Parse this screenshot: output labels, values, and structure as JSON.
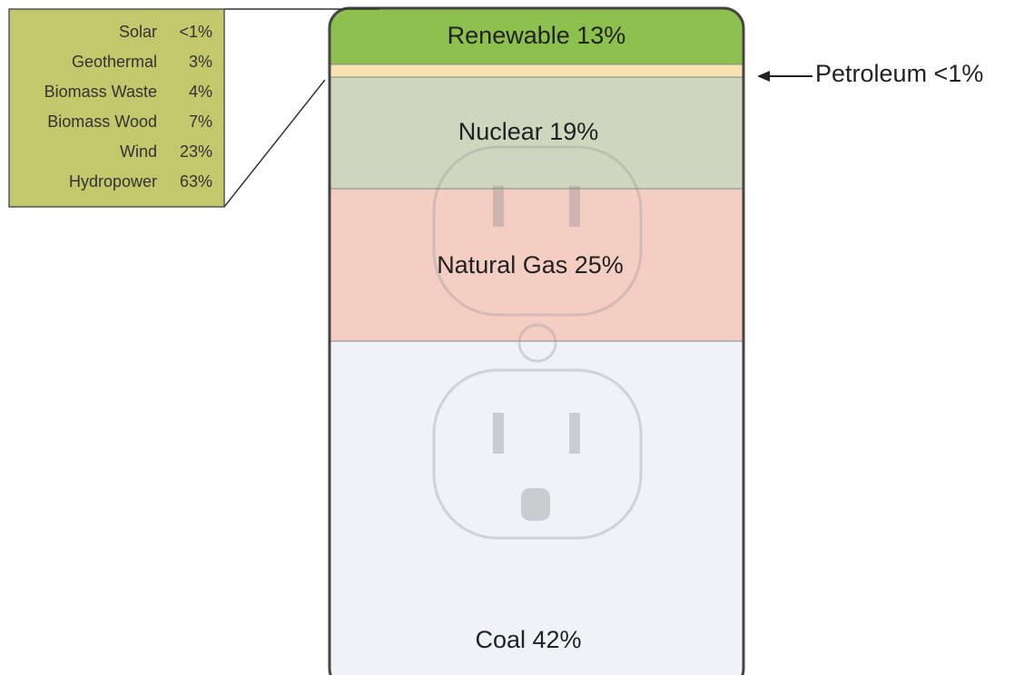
{
  "segments": [
    {
      "label": "Renewable 13%"
    },
    {
      "label": "Nuclear 19%"
    },
    {
      "label": "Natural Gas 25%"
    },
    {
      "label": "Coal 42%"
    }
  ],
  "petroleum": {
    "label": "Petroleum <1%"
  },
  "renewable_breakdown": {
    "rows": [
      {
        "name": "Solar",
        "value": "<1%"
      },
      {
        "name": "Geothermal",
        "value": "3%"
      },
      {
        "name": "Biomass Waste",
        "value": "4%"
      },
      {
        "name": "Biomass Wood",
        "value": "7%"
      },
      {
        "name": "Wind",
        "value": "23%"
      },
      {
        "name": "Hydropower",
        "value": "63%"
      }
    ]
  }
}
